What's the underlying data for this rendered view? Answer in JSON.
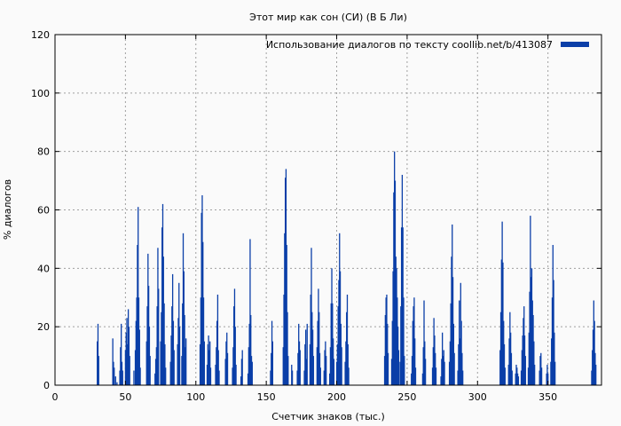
{
  "chart_data": {
    "type": "bar",
    "title": "Этот мир как сон (СИ) (В Б Ли)",
    "xlabel": "Счетчик знаков (тыс.)",
    "ylabel": "% диалогов",
    "xlim": [
      0,
      388
    ],
    "ylim": [
      0,
      120
    ],
    "x_ticks": [
      0,
      50,
      100,
      150,
      200,
      250,
      300,
      350
    ],
    "y_ticks": [
      0,
      20,
      40,
      60,
      80,
      100,
      120
    ],
    "grid": true,
    "legend_position": "top-right",
    "series": [
      {
        "name": "Использование диалогов по тексту  coollib.net/b/413087",
        "color": "#0b3fa8",
        "points": [
          [
            30,
            15
          ],
          [
            30.5,
            21
          ],
          [
            31,
            10
          ],
          [
            41,
            16
          ],
          [
            41.5,
            8
          ],
          [
            42,
            6
          ],
          [
            43,
            3
          ],
          [
            44,
            1
          ],
          [
            46,
            5
          ],
          [
            46.5,
            13
          ],
          [
            47,
            21
          ],
          [
            47.5,
            8
          ],
          [
            48,
            5
          ],
          [
            50,
            12
          ],
          [
            50.5,
            18
          ],
          [
            51,
            23
          ],
          [
            51.5,
            14
          ],
          [
            52,
            26
          ],
          [
            52.5,
            20
          ],
          [
            53,
            10
          ],
          [
            56,
            5
          ],
          [
            57,
            12
          ],
          [
            57.5,
            22
          ],
          [
            58,
            30
          ],
          [
            58.5,
            48
          ],
          [
            59,
            61
          ],
          [
            59.5,
            30
          ],
          [
            60,
            19
          ],
          [
            60.5,
            6
          ],
          [
            65,
            15
          ],
          [
            65.5,
            27
          ],
          [
            66,
            45
          ],
          [
            66.5,
            34
          ],
          [
            67,
            20
          ],
          [
            67.5,
            10
          ],
          [
            71,
            4
          ],
          [
            71.5,
            9
          ],
          [
            72,
            13
          ],
          [
            72.5,
            27
          ],
          [
            73,
            47
          ],
          [
            73.5,
            33
          ],
          [
            75,
            15
          ],
          [
            75.5,
            25
          ],
          [
            76,
            54
          ],
          [
            76.5,
            62
          ],
          [
            77,
            44
          ],
          [
            77.5,
            28
          ],
          [
            78,
            14
          ],
          [
            78.5,
            6
          ],
          [
            82,
            8
          ],
          [
            82.5,
            17
          ],
          [
            83,
            27
          ],
          [
            83.5,
            38
          ],
          [
            84,
            22
          ],
          [
            84.5,
            12
          ],
          [
            87,
            14
          ],
          [
            87.5,
            23
          ],
          [
            88,
            35
          ],
          [
            88.5,
            20
          ],
          [
            90,
            10
          ],
          [
            90.5,
            28
          ],
          [
            91,
            52
          ],
          [
            91.5,
            39
          ],
          [
            92,
            24
          ],
          [
            92.5,
            13
          ],
          [
            93,
            16
          ],
          [
            103,
            14
          ],
          [
            103.5,
            30
          ],
          [
            104,
            59
          ],
          [
            104.5,
            65
          ],
          [
            105,
            49
          ],
          [
            105.5,
            30
          ],
          [
            106,
            15
          ],
          [
            108,
            7
          ],
          [
            108.5,
            14
          ],
          [
            109,
            17
          ],
          [
            109.5,
            12
          ],
          [
            110,
            15
          ],
          [
            110.5,
            6
          ],
          [
            114,
            7
          ],
          [
            114.5,
            13
          ],
          [
            115,
            22
          ],
          [
            115.5,
            31
          ],
          [
            116,
            12
          ],
          [
            116.5,
            5
          ],
          [
            121,
            9
          ],
          [
            121.5,
            15
          ],
          [
            122,
            18
          ],
          [
            122.5,
            11
          ],
          [
            126,
            6
          ],
          [
            126.5,
            13
          ],
          [
            127,
            27
          ],
          [
            127.5,
            33
          ],
          [
            128,
            20
          ],
          [
            128.5,
            7
          ],
          [
            132,
            3
          ],
          [
            132.5,
            9
          ],
          [
            133,
            12
          ],
          [
            137,
            4
          ],
          [
            137.5,
            13
          ],
          [
            138,
            21
          ],
          [
            138.5,
            50
          ],
          [
            139,
            24
          ],
          [
            139.5,
            10
          ],
          [
            140,
            8
          ],
          [
            153,
            5
          ],
          [
            153.5,
            11
          ],
          [
            154,
            22
          ],
          [
            154.5,
            15
          ],
          [
            162,
            13
          ],
          [
            162.5,
            31
          ],
          [
            163,
            52
          ],
          [
            163.5,
            71
          ],
          [
            164,
            74
          ],
          [
            164.5,
            48
          ],
          [
            165,
            25
          ],
          [
            165.5,
            10
          ],
          [
            168,
            7
          ],
          [
            168.5,
            5
          ],
          [
            172,
            5
          ],
          [
            172.5,
            11
          ],
          [
            173,
            21
          ],
          [
            173.5,
            15
          ],
          [
            174,
            12
          ],
          [
            177,
            5
          ],
          [
            177.5,
            14
          ],
          [
            178,
            19
          ],
          [
            178.5,
            9
          ],
          [
            179,
            21
          ],
          [
            181,
            14
          ],
          [
            181.5,
            31
          ],
          [
            182,
            47
          ],
          [
            182.5,
            25
          ],
          [
            183,
            19
          ],
          [
            183.5,
            10
          ],
          [
            186,
            13
          ],
          [
            186.5,
            22
          ],
          [
            187,
            33
          ],
          [
            187.5,
            25
          ],
          [
            188,
            11
          ],
          [
            188.5,
            6
          ],
          [
            191,
            5
          ],
          [
            191.5,
            12
          ],
          [
            192,
            15
          ],
          [
            192.5,
            10
          ],
          [
            195,
            4
          ],
          [
            195.5,
            13
          ],
          [
            196,
            28
          ],
          [
            196.5,
            40
          ],
          [
            197,
            28
          ],
          [
            197.5,
            16
          ],
          [
            198,
            9
          ],
          [
            200,
            8
          ],
          [
            200.5,
            14
          ],
          [
            201,
            27
          ],
          [
            201.5,
            36
          ],
          [
            202,
            52
          ],
          [
            202.5,
            39
          ],
          [
            203,
            21
          ],
          [
            203.5,
            13
          ],
          [
            206,
            8
          ],
          [
            206.5,
            15
          ],
          [
            207,
            25
          ],
          [
            207.5,
            31
          ],
          [
            208,
            14
          ],
          [
            208.5,
            6
          ],
          [
            234,
            10
          ],
          [
            234.5,
            24
          ],
          [
            235,
            30
          ],
          [
            235.5,
            31
          ],
          [
            236,
            21
          ],
          [
            236.5,
            11
          ],
          [
            239,
            9
          ],
          [
            239.5,
            22
          ],
          [
            240,
            39
          ],
          [
            240.5,
            66
          ],
          [
            241,
            80
          ],
          [
            241.5,
            70
          ],
          [
            242,
            44
          ],
          [
            242.5,
            40
          ],
          [
            243,
            30
          ],
          [
            243.5,
            20
          ],
          [
            244,
            12
          ],
          [
            245,
            8
          ],
          [
            245.5,
            27
          ],
          [
            246,
            54
          ],
          [
            246.5,
            72
          ],
          [
            247,
            54
          ],
          [
            247.5,
            30
          ],
          [
            248,
            10
          ],
          [
            253,
            4
          ],
          [
            253.5,
            10
          ],
          [
            254,
            22
          ],
          [
            254.5,
            27
          ],
          [
            255,
            30
          ],
          [
            255.5,
            16
          ],
          [
            256,
            6
          ],
          [
            261,
            4
          ],
          [
            261.5,
            13
          ],
          [
            262,
            29
          ],
          [
            262.5,
            15
          ],
          [
            263,
            9
          ],
          [
            268,
            6
          ],
          [
            268.5,
            13
          ],
          [
            269,
            23
          ],
          [
            269.5,
            17
          ],
          [
            270,
            11
          ],
          [
            270.5,
            6
          ],
          [
            274,
            3
          ],
          [
            274.5,
            9
          ],
          [
            275,
            18
          ],
          [
            275.5,
            10
          ],
          [
            276,
            12
          ],
          [
            276.5,
            8
          ],
          [
            280,
            8
          ],
          [
            280.5,
            15
          ],
          [
            281,
            28
          ],
          [
            281.5,
            44
          ],
          [
            282,
            55
          ],
          [
            282.5,
            37
          ],
          [
            283,
            21
          ],
          [
            283.5,
            11
          ],
          [
            286,
            5
          ],
          [
            286.5,
            14
          ],
          [
            287,
            29
          ],
          [
            287.5,
            16
          ],
          [
            288,
            35
          ],
          [
            288.5,
            22
          ],
          [
            289,
            11
          ],
          [
            289.5,
            5
          ],
          [
            316,
            12
          ],
          [
            316.5,
            25
          ],
          [
            317,
            43
          ],
          [
            317.5,
            56
          ],
          [
            318,
            42
          ],
          [
            318.5,
            22
          ],
          [
            319,
            14
          ],
          [
            319.5,
            6
          ],
          [
            322,
            7
          ],
          [
            322.5,
            16
          ],
          [
            323,
            25
          ],
          [
            323.5,
            18
          ],
          [
            324,
            11
          ],
          [
            324.5,
            5
          ],
          [
            327,
            4
          ],
          [
            327.5,
            7
          ],
          [
            328,
            6
          ],
          [
            328.5,
            4
          ],
          [
            329,
            3
          ],
          [
            331,
            5
          ],
          [
            331.5,
            12
          ],
          [
            332,
            17
          ],
          [
            332.5,
            23
          ],
          [
            333,
            27
          ],
          [
            333.5,
            17
          ],
          [
            334,
            10
          ],
          [
            336,
            6
          ],
          [
            336.5,
            18
          ],
          [
            337,
            32
          ],
          [
            337.5,
            58
          ],
          [
            338,
            37
          ],
          [
            338.5,
            40
          ],
          [
            339,
            29
          ],
          [
            339.5,
            24
          ],
          [
            340,
            15
          ],
          [
            340.5,
            7
          ],
          [
            344,
            5
          ],
          [
            344.5,
            10
          ],
          [
            345,
            11
          ],
          [
            345.5,
            6
          ],
          [
            349,
            4
          ],
          [
            349.5,
            7
          ],
          [
            350,
            4
          ],
          [
            352,
            8
          ],
          [
            352.5,
            16
          ],
          [
            353,
            30
          ],
          [
            353.5,
            48
          ],
          [
            354,
            36
          ],
          [
            354.5,
            18
          ],
          [
            355,
            8
          ],
          [
            381,
            5
          ],
          [
            381.5,
            12
          ],
          [
            382,
            19
          ],
          [
            382.5,
            29
          ],
          [
            383,
            22
          ],
          [
            383.5,
            11
          ],
          [
            384,
            7
          ]
        ]
      }
    ]
  }
}
